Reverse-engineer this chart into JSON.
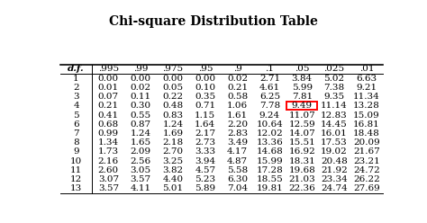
{
  "title": "Chi-square Distribution Table",
  "columns": [
    "d.f.",
    ".995",
    ".99",
    ".975",
    ".95",
    ".9",
    ".1",
    ".05",
    ".025",
    ".01"
  ],
  "rows": [
    [
      1,
      0.0,
      0.0,
      0.0,
      0.0,
      0.02,
      2.71,
      3.84,
      5.02,
      6.63
    ],
    [
      2,
      0.01,
      0.02,
      0.05,
      0.1,
      0.21,
      4.61,
      5.99,
      7.38,
      9.21
    ],
    [
      3,
      0.07,
      0.11,
      0.22,
      0.35,
      0.58,
      6.25,
      7.81,
      9.35,
      11.34
    ],
    [
      4,
      0.21,
      0.3,
      0.48,
      0.71,
      1.06,
      7.78,
      9.49,
      11.14,
      13.28
    ],
    [
      5,
      0.41,
      0.55,
      0.83,
      1.15,
      1.61,
      9.24,
      11.07,
      12.83,
      15.09
    ],
    [
      6,
      0.68,
      0.87,
      1.24,
      1.64,
      2.2,
      10.64,
      12.59,
      14.45,
      16.81
    ],
    [
      7,
      0.99,
      1.24,
      1.69,
      2.17,
      2.83,
      12.02,
      14.07,
      16.01,
      18.48
    ],
    [
      8,
      1.34,
      1.65,
      2.18,
      2.73,
      3.49,
      13.36,
      15.51,
      17.53,
      20.09
    ],
    [
      9,
      1.73,
      2.09,
      2.7,
      3.33,
      4.17,
      14.68,
      16.92,
      19.02,
      21.67
    ],
    [
      10,
      2.16,
      2.56,
      3.25,
      3.94,
      4.87,
      15.99,
      18.31,
      20.48,
      23.21
    ],
    [
      11,
      2.6,
      3.05,
      3.82,
      4.57,
      5.58,
      17.28,
      19.68,
      21.92,
      24.72
    ],
    [
      12,
      3.07,
      3.57,
      4.4,
      5.23,
      6.3,
      18.55,
      21.03,
      23.34,
      26.22
    ],
    [
      13,
      3.57,
      4.11,
      5.01,
      5.89,
      7.04,
      19.81,
      22.36,
      24.74,
      27.69
    ]
  ],
  "highlight_row": 3,
  "highlight_col": 7,
  "highlight_color": "red",
  "bg_color": "#ffffff",
  "text_color": "#000000",
  "title_fontsize": 10,
  "cell_fontsize": 7.5,
  "header_fontsize": 7.5
}
